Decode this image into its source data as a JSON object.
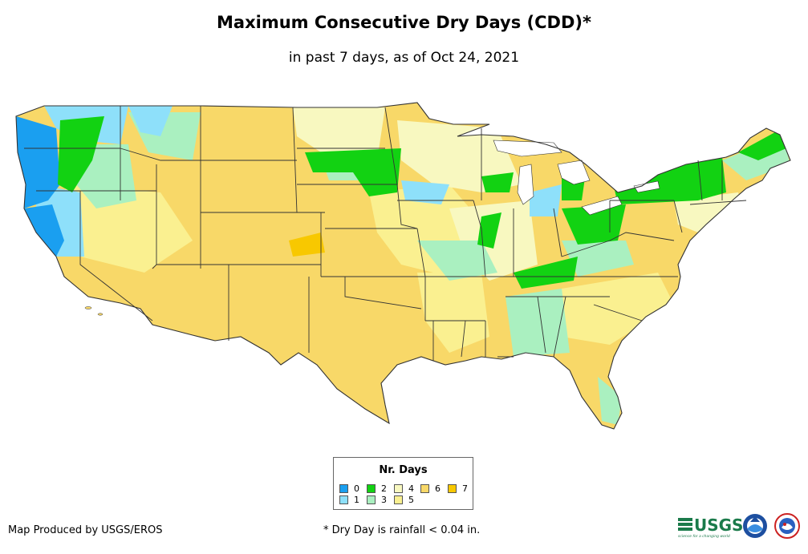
{
  "title": "Maximum Consecutive Dry Days (CDD)*",
  "subtitle": "in past 7 days, as of Oct 24, 2021",
  "legend": {
    "title": "Nr. Days",
    "items": [
      {
        "label": "0",
        "color": "#1a9ff0"
      },
      {
        "label": "1",
        "color": "#8ee0fa"
      },
      {
        "label": "2",
        "color": "#12d212"
      },
      {
        "label": "3",
        "color": "#aaf0c0"
      },
      {
        "label": "4",
        "color": "#f8f8c0"
      },
      {
        "label": "5",
        "color": "#faf090"
      },
      {
        "label": "6",
        "color": "#f8d868"
      },
      {
        "label": "7",
        "color": "#f8c800"
      }
    ]
  },
  "footer": {
    "credit": "Map Produced by USGS/EROS",
    "note": "* Dry Day is rainfall < 0.04 in."
  },
  "logos": {
    "usgs": "USGS",
    "usgs_tagline": "science for a changing world"
  },
  "colors": {
    "state_border": "#333333",
    "water": "#ffffff"
  }
}
